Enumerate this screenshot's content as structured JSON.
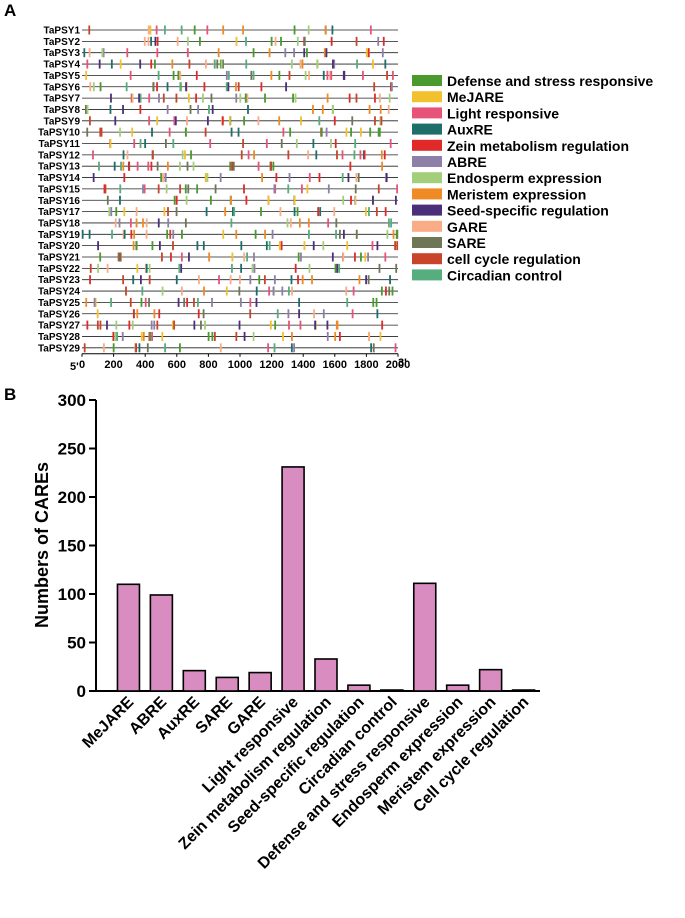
{
  "panel_a": {
    "letter": "A",
    "genes": [
      "TaPSY1",
      "TaPSY2",
      "TaPSY3",
      "TaPSY4",
      "TaPSY5",
      "TaPSY6",
      "TaPSY7",
      "TaPSY8",
      "TaPSY9",
      "TaPSY10",
      "TaPSY11",
      "TaPSY12",
      "TaPSY13",
      "TaPSY14",
      "TaPSY15",
      "TaPSY16",
      "TaPSY17",
      "TaPSY18",
      "TaPSY19",
      "TaPSY20",
      "TaPSY21",
      "TaPSY22",
      "TaPSY23",
      "TaPSY24",
      "TaPSY25",
      "TaPSY26",
      "TaPSY27",
      "TaPSY28",
      "TaPSY29"
    ],
    "end5": "5'",
    "end3": "3'",
    "x_ticks": [
      "0",
      "200",
      "400",
      "600",
      "800",
      "1000",
      "1200",
      "1400",
      "1600",
      "1800",
      "2000"
    ],
    "x_range": [
      0,
      2000
    ],
    "legend": [
      {
        "label": "Defense and stress responsive",
        "color": "#4a9a2e"
      },
      {
        "label": "MeJARE",
        "color": "#f2c12e"
      },
      {
        "label": "Light responsive",
        "color": "#e8537a"
      },
      {
        "label": "AuxRE",
        "color": "#1e6e6a"
      },
      {
        "label": "Zein metabolism regulation",
        "color": "#e02a2a"
      },
      {
        "label": "ABRE",
        "color": "#8e7fa8"
      },
      {
        "label": "Endosperm expression",
        "color": "#a4cf7a"
      },
      {
        "label": "Meristem expression",
        "color": "#f08a24"
      },
      {
        "label": "Seed-specific regulation",
        "color": "#4b2f7a"
      },
      {
        "label": "GARE",
        "color": "#f9ac86"
      },
      {
        "label": "SARE",
        "color": "#6e7656"
      },
      {
        "label": "cell cycle regulation",
        "color": "#c8442a"
      },
      {
        "label": "Circadian control",
        "color": "#56ad7e"
      }
    ]
  },
  "panel_b": {
    "letter": "B"
  },
  "chart_data": {
    "type": "bar",
    "title": "",
    "xlabel": "",
    "ylabel": "Numbers of CAREs",
    "ylim": [
      0,
      300
    ],
    "yticks": [
      0,
      50,
      100,
      150,
      200,
      250,
      300
    ],
    "categories": [
      "MeJARE",
      "ABRE",
      "AuxRE",
      "SARE",
      "GARE",
      "Light responsive",
      "Zein metabolism regulation",
      "Seed-specific regulation",
      "Circadian control",
      "Defense and stress responsive",
      "Endosperm expression",
      "Meristem expression",
      "Cell cycle regulation"
    ],
    "values": [
      110,
      99,
      21,
      14,
      19,
      231,
      33,
      6,
      1,
      111,
      6,
      22,
      1
    ],
    "bar_color": "#d98cbf",
    "edge_color": "#000000"
  }
}
